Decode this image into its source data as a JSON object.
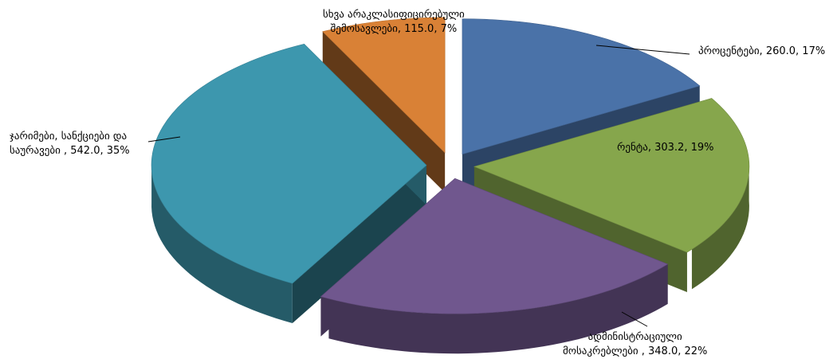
{
  "chart_data": {
    "type": "pie",
    "style": "3d-exploded",
    "slices": [
      {
        "name": "პროცენტები",
        "value": 260.0,
        "percent": 17,
        "color": "#4a72a8",
        "label_lines": [
          "პროცენტები, 260.0, 17%"
        ]
      },
      {
        "name": "რენტა",
        "value": 303.2,
        "percent": 19,
        "color": "#86a64c",
        "label_lines": [
          "რენტა, 303.2, 19%"
        ]
      },
      {
        "name": "ადმინისტრაციული მოსაკრებლები",
        "value": 348.0,
        "percent": 22,
        "color": "#70578e",
        "label_lines": [
          "ადმინისტრაციული",
          "მოსაკრებლები , 348.0, 22%"
        ]
      },
      {
        "name": "ჯარიმები, სანქციები და საურავები",
        "value": 542.0,
        "percent": 35,
        "color": "#3d97ae",
        "label_lines": [
          "ჯარიმები, სანქციები და",
          "საურავები , 542.0, 35%"
        ]
      },
      {
        "name": "სხვა არაკლასიფიცირებული შემოსავლები",
        "value": 115.0,
        "percent": 7,
        "color": "#d98136",
        "label_lines": [
          "სხვა არაკლასიფიცირებული",
          "შემოსავლები, 115.0, 7%"
        ]
      }
    ]
  }
}
